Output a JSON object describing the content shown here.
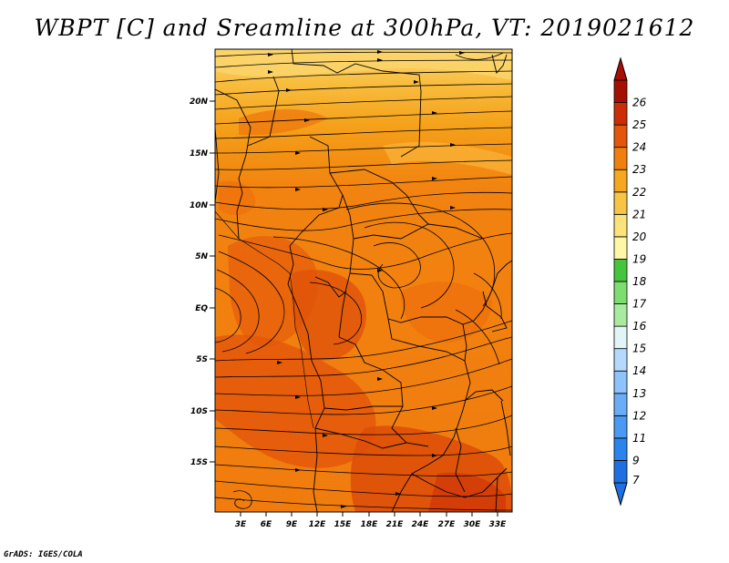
{
  "title": "WBPT [C] and Sreamline at 300hPa, VT: 2019021612",
  "footer": "GrADS: IGES/COLA",
  "map": {
    "variable": "WBPT",
    "unit": "C",
    "level": "300hPa",
    "valid_time": "2019021612",
    "lon_labels": [
      "3E",
      "6E",
      "9E",
      "12E",
      "15E",
      "18E",
      "21E",
      "24E",
      "27E",
      "30E",
      "33E"
    ],
    "lat_labels": [
      "20N",
      "15N",
      "10N",
      "5N",
      "EQ",
      "5S",
      "10S",
      "15S"
    ]
  },
  "colorbar": {
    "labels": [
      "7",
      "9",
      "11",
      "12",
      "13",
      "14",
      "15",
      "16",
      "17",
      "18",
      "19",
      "20",
      "21",
      "22",
      "23",
      "24",
      "25",
      "26"
    ],
    "colors": [
      "#1e6fe0",
      "#2b83ee",
      "#4a99f3",
      "#69adf7",
      "#8dc3fa",
      "#b5d9fc",
      "#e2f5f6",
      "#a8eba0",
      "#7ddd6f",
      "#45c53d",
      "#fdf7a6",
      "#fbe27b",
      "#f8c445",
      "#f5a71f",
      "#f0800e",
      "#e4560b",
      "#cc2d06",
      "#a50f04"
    ]
  }
}
